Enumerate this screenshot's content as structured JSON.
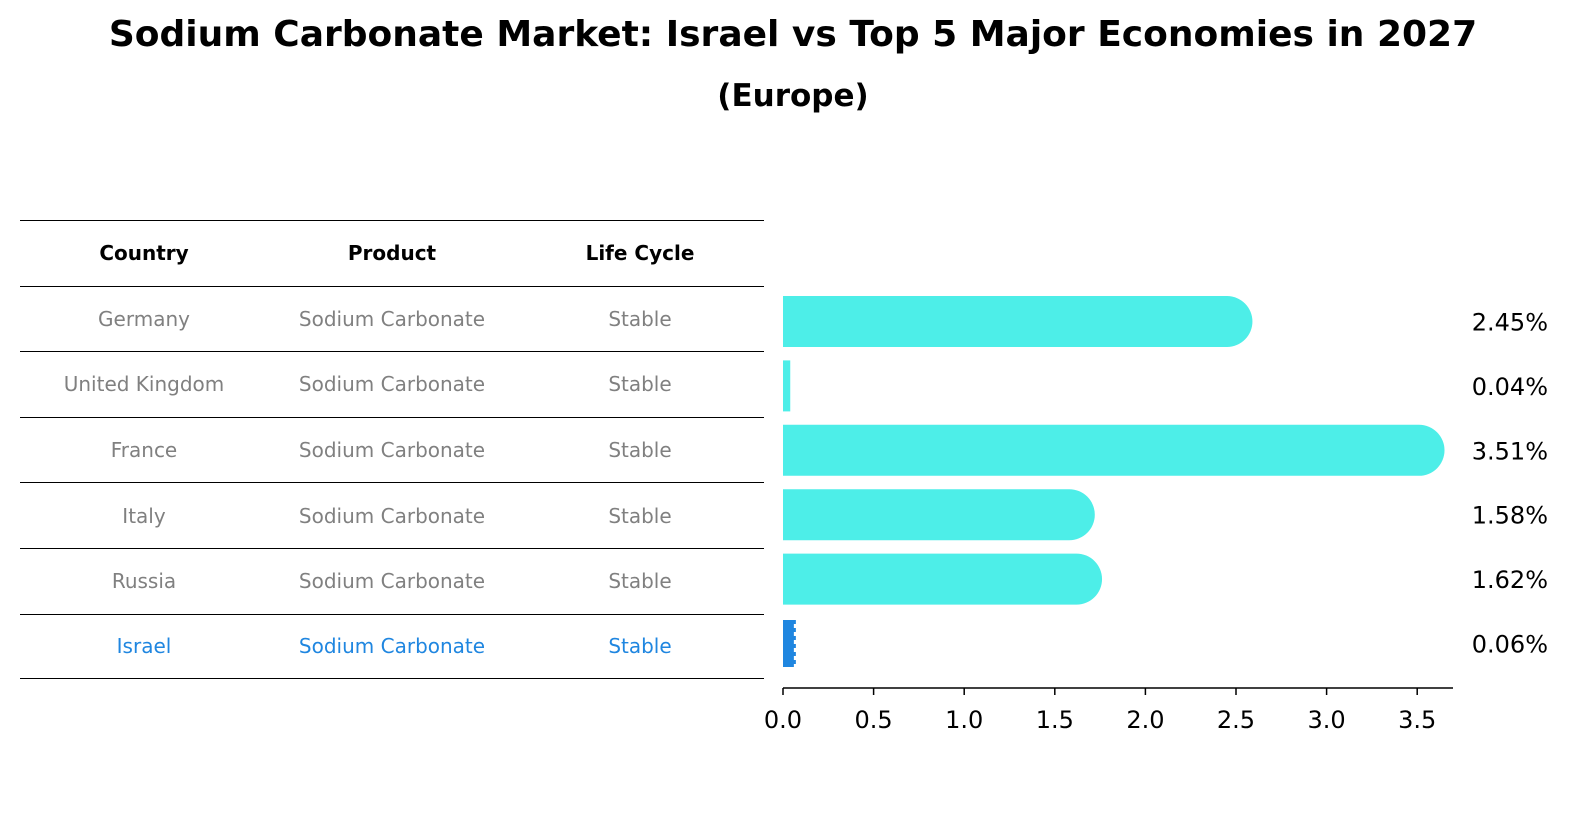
{
  "title": "Sodium Carbonate Market: Israel vs Top 5 Major Economies in 2027",
  "subtitle": "(Europe)",
  "table": {
    "headers": [
      "Country",
      "Product",
      "Life Cycle"
    ],
    "rows": [
      [
        "Germany",
        "Sodium Carbonate",
        "Stable"
      ],
      [
        "United Kingdom",
        "Sodium Carbonate",
        "Stable"
      ],
      [
        "France",
        "Sodium Carbonate",
        "Stable"
      ],
      [
        "Italy",
        "Sodium Carbonate",
        "Stable"
      ],
      [
        "Russia",
        "Sodium Carbonate",
        "Stable"
      ],
      [
        "Israel",
        "Sodium Carbonate",
        "Stable"
      ]
    ],
    "highlight_row": 5
  },
  "colors": {
    "bar": "#4deee8",
    "highlight": "#1f86e0",
    "muted_text": "#808080"
  },
  "chart_data": {
    "type": "bar",
    "orientation": "horizontal",
    "categories": [
      "Germany",
      "United Kingdom",
      "France",
      "Italy",
      "Russia",
      "Israel"
    ],
    "values": [
      2.45,
      0.04,
      3.51,
      1.58,
      1.62,
      0.06
    ],
    "value_labels": [
      "2.45%",
      "0.04%",
      "3.51%",
      "1.58%",
      "1.62%",
      "0.06%"
    ],
    "xticks": [
      0.0,
      0.5,
      1.0,
      1.5,
      2.0,
      2.5,
      3.0,
      3.5
    ],
    "xtick_labels": [
      "0.0",
      "0.5",
      "1.0",
      "1.5",
      "2.0",
      "2.5",
      "3.0",
      "3.5"
    ],
    "xlim": [
      0,
      3.7
    ],
    "highlight_category": "Israel",
    "grid": false
  }
}
